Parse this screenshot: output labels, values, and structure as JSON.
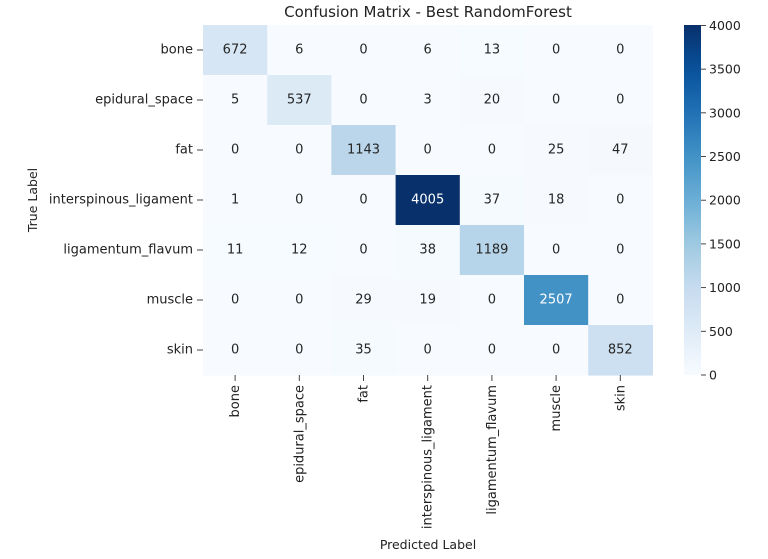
{
  "chart_data": {
    "type": "heatmap",
    "title": "Confusion Matrix - Best RandomForest",
    "xlabel": "Predicted Label",
    "ylabel": "True Label",
    "row_labels": [
      "bone",
      "epidural_space",
      "fat",
      "interspinous_ligament",
      "ligamentum_flavum",
      "muscle",
      "skin"
    ],
    "col_labels": [
      "bone",
      "epidural_space",
      "fat",
      "interspinous_ligament",
      "ligamentum_flavum",
      "muscle",
      "skin"
    ],
    "matrix": [
      [
        672,
        6,
        0,
        6,
        13,
        0,
        0
      ],
      [
        5,
        537,
        0,
        3,
        20,
        0,
        0
      ],
      [
        0,
        0,
        1143,
        0,
        0,
        25,
        47
      ],
      [
        1,
        0,
        0,
        4005,
        37,
        18,
        0
      ],
      [
        11,
        12,
        0,
        38,
        1189,
        0,
        0
      ],
      [
        0,
        0,
        29,
        19,
        0,
        2507,
        0
      ],
      [
        0,
        0,
        35,
        0,
        0,
        0,
        852
      ]
    ],
    "colormap": "Blues",
    "color_range": [
      0,
      4005
    ],
    "colorbar": {
      "ticks": [
        0,
        500,
        1000,
        1500,
        2000,
        2500,
        3000,
        3500,
        4000
      ]
    }
  }
}
